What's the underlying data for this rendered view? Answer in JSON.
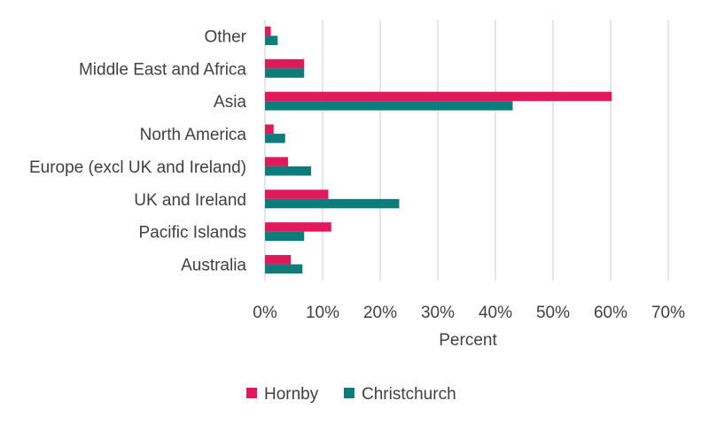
{
  "chart_data": {
    "type": "bar",
    "orientation": "horizontal",
    "categories": [
      "Other",
      "Middle East and Africa",
      "Asia",
      "North America",
      "Europe (excl UK and Ireland)",
      "UK and Ireland",
      "Pacific Islands",
      "Australia"
    ],
    "series": [
      {
        "name": "Hornby",
        "color": "#e0195a",
        "values": [
          1.0,
          6.8,
          60.2,
          1.5,
          4.0,
          11.0,
          11.5,
          4.5
        ]
      },
      {
        "name": "Christchurch",
        "color": "#0e7c7b",
        "values": [
          2.2,
          6.8,
          43.0,
          3.5,
          8.0,
          23.3,
          6.8,
          6.5
        ]
      }
    ],
    "xlabel": "Percent",
    "xlim": [
      0,
      70
    ],
    "xticks": [
      "0%",
      "10%",
      "20%",
      "30%",
      "40%",
      "50%",
      "60%",
      "70%"
    ],
    "grid": true,
    "legend": "bottom"
  }
}
